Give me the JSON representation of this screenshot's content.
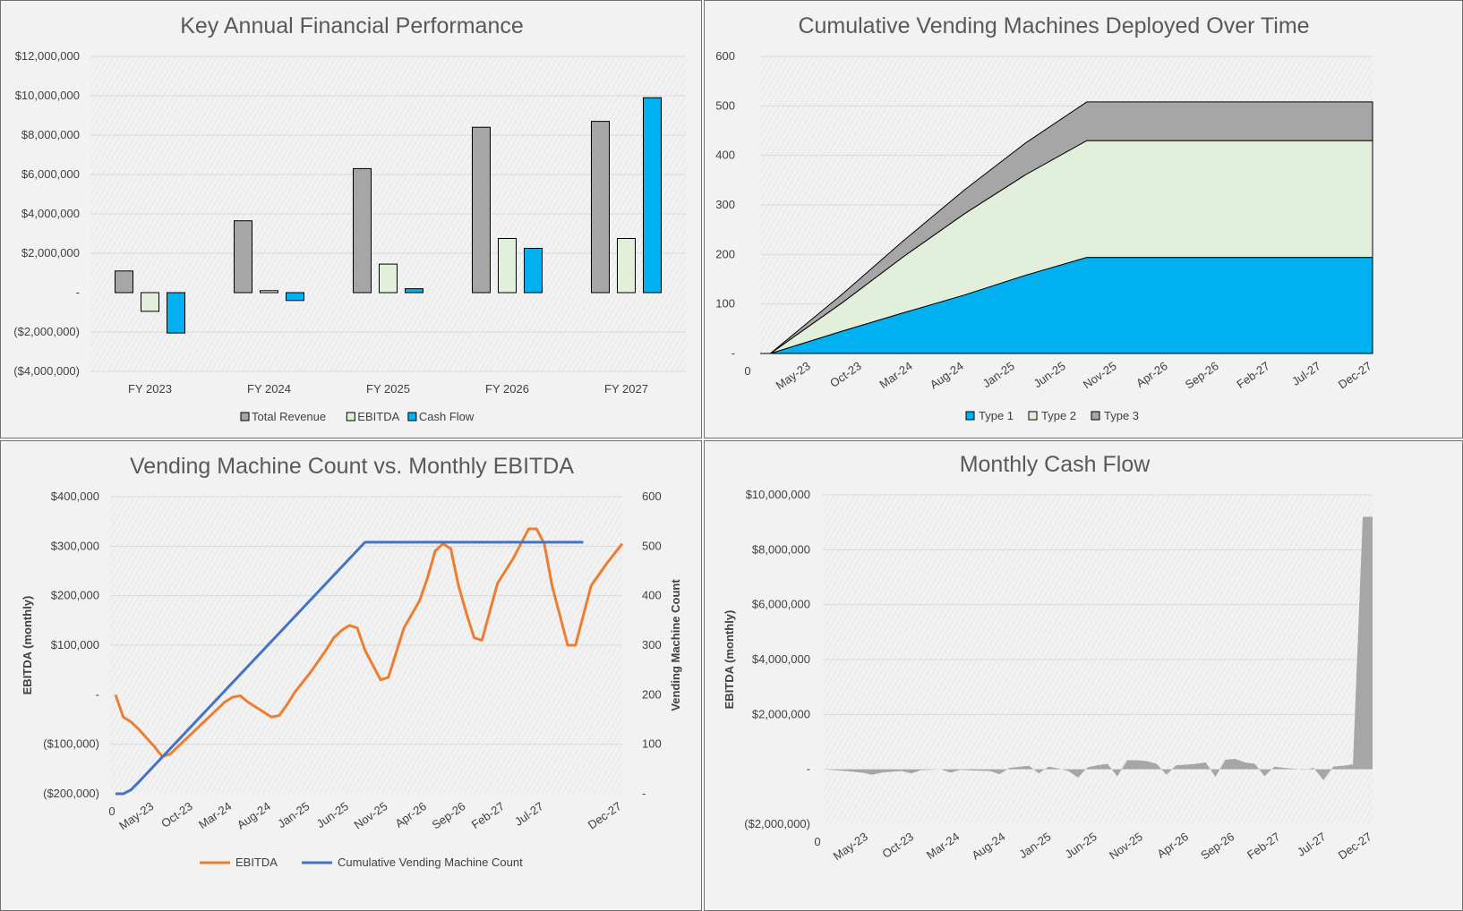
{
  "chart_data": [
    {
      "type": "bar",
      "title": "Key Annual Financial Performance",
      "categories": [
        "FY 2023",
        "FY 2024",
        "FY 2025",
        "FY 2026",
        "FY 2027"
      ],
      "series": [
        {
          "name": "Total Revenue",
          "values": [
            1100000,
            3650000,
            6300000,
            8400000,
            8700000
          ],
          "color": "#a6a6a6"
        },
        {
          "name": "EBITDA",
          "values": [
            -950000,
            100000,
            1450000,
            2750000,
            2750000
          ],
          "color": "#e2efda"
        },
        {
          "name": "Cash Flow",
          "values": [
            -2050000,
            -400000,
            200000,
            2250000,
            9900000
          ],
          "color": "#00b0f0"
        }
      ],
      "ylim": [
        -4000000,
        12000000
      ],
      "yticks": [
        12000000,
        10000000,
        8000000,
        6000000,
        4000000,
        2000000,
        0,
        -2000000,
        -4000000
      ],
      "ytick_labels": [
        "$12,000,000",
        "$10,000,000",
        "$8,000,000",
        "$6,000,000",
        "$4,000,000",
        "$2,000,000",
        "-",
        "($2,000,000)",
        "($4,000,000)"
      ],
      "legend": "bottom",
      "grid": true
    },
    {
      "type": "area",
      "stacked": true,
      "title": "Cumulative Vending Machines Deployed Over Time",
      "x_labels": [
        "0",
        "May-23",
        "Oct-23",
        "Mar-24",
        "Aug-24",
        "Jan-25",
        "Jun-25",
        "Nov-25",
        "Apr-26",
        "Sep-26",
        "Feb-27",
        "Jul-27",
        "Dec-27"
      ],
      "x_index_range": [
        0,
        60
      ],
      "series": [
        {
          "name": "Type 1",
          "color": "#00b0f0",
          "points": [
            [
              0,
              0
            ],
            [
              1,
              0
            ],
            [
              8,
              45
            ],
            [
              14,
              82
            ],
            [
              20,
              118
            ],
            [
              26,
              158
            ],
            [
              32,
              194
            ],
            [
              60,
              194
            ]
          ]
        },
        {
          "name": "Type 2",
          "color": "#e2efda",
          "points": [
            [
              0,
              0
            ],
            [
              1,
              0
            ],
            [
              8,
              57
            ],
            [
              14,
              113
            ],
            [
              20,
              164
            ],
            [
              26,
              203
            ],
            [
              32,
              236
            ],
            [
              60,
              236
            ]
          ]
        },
        {
          "name": "Type 3",
          "color": "#a6a6a6",
          "points": [
            [
              0,
              0
            ],
            [
              1,
              0
            ],
            [
              8,
              17
            ],
            [
              14,
              32
            ],
            [
              20,
              48
            ],
            [
              26,
              64
            ],
            [
              32,
              78
            ],
            [
              60,
              78
            ]
          ]
        }
      ],
      "ylim": [
        0,
        600
      ],
      "yticks": [
        600,
        500,
        400,
        300,
        200,
        100,
        0
      ],
      "ytick_labels": [
        "600",
        "500",
        "400",
        "300",
        "200",
        "100",
        "-"
      ],
      "legend": "bottom",
      "grid": true
    },
    {
      "type": "line",
      "title": "Vending Machine Count vs. Monthly EBITDA",
      "x_labels": [
        "0",
        "May-23",
        "Oct-23",
        "Mar-24",
        "Aug-24",
        "Jan-25",
        "Jun-25",
        "Nov-25",
        "Apr-26",
        "Sep-26",
        "Feb-27",
        "Jul-27",
        "Dec-27"
      ],
      "x_index_range": [
        0,
        60
      ],
      "series": [
        {
          "name": "EBITDA",
          "axis": "left",
          "color": "#ed7d31",
          "points": [
            [
              0,
              0
            ],
            [
              1,
              -45000
            ],
            [
              2,
              -55000
            ],
            [
              3,
              -70000
            ],
            [
              5,
              -105000
            ],
            [
              6,
              -125000
            ],
            [
              7,
              -120000
            ],
            [
              8,
              -105000
            ],
            [
              10,
              -75000
            ],
            [
              12,
              -45000
            ],
            [
              13,
              -30000
            ],
            [
              14,
              -15000
            ],
            [
              15,
              -5000
            ],
            [
              16,
              -2000
            ],
            [
              17,
              -15000
            ],
            [
              18,
              -25000
            ],
            [
              19,
              -35000
            ],
            [
              20,
              -45000
            ],
            [
              21,
              -42000
            ],
            [
              22,
              -20000
            ],
            [
              23,
              5000
            ],
            [
              25,
              45000
            ],
            [
              27,
              90000
            ],
            [
              28,
              115000
            ],
            [
              29,
              130000
            ],
            [
              30,
              140000
            ],
            [
              31,
              135000
            ],
            [
              32,
              90000
            ],
            [
              33,
              60000
            ],
            [
              34,
              30000
            ],
            [
              35,
              35000
            ],
            [
              37,
              135000
            ],
            [
              39,
              190000
            ],
            [
              40,
              235000
            ],
            [
              41,
              290000
            ],
            [
              42,
              305000
            ],
            [
              43,
              295000
            ],
            [
              44,
              220000
            ],
            [
              45,
              165000
            ],
            [
              46,
              115000
            ],
            [
              47,
              110000
            ],
            [
              49,
              225000
            ],
            [
              51,
              275000
            ],
            [
              53,
              335000
            ],
            [
              54,
              335000
            ],
            [
              55,
              305000
            ],
            [
              56,
              220000
            ],
            [
              57,
              160000
            ],
            [
              58,
              100000
            ],
            [
              59,
              100000
            ],
            [
              61,
              220000
            ],
            [
              63,
              265000
            ],
            [
              65,
              305000
            ]
          ]
        },
        {
          "name": "Cumulative Vending Machine Count",
          "axis": "right",
          "color": "#4472c4",
          "points": [
            [
              0,
              0
            ],
            [
              1,
              0
            ],
            [
              2,
              8
            ],
            [
              3,
              24
            ],
            [
              32,
              508
            ],
            [
              60,
              508
            ]
          ]
        }
      ],
      "x_index_max": 65,
      "ylim_left": [
        -200000,
        400000
      ],
      "yticks_left": [
        400000,
        300000,
        200000,
        100000,
        0,
        -100000,
        -200000
      ],
      "ytick_labels_left": [
        "$400,000",
        "$300,000",
        "$200,000",
        "$100,000",
        "-",
        "($100,000)",
        "($200,000)"
      ],
      "ylim_right": [
        0,
        600
      ],
      "yticks_right": [
        600,
        500,
        400,
        300,
        200,
        100,
        0
      ],
      "ytick_labels_right": [
        "600",
        "500",
        "400",
        "300",
        "200",
        "100",
        "-"
      ],
      "ylabel_left": "EBITDA (monthly)",
      "ylabel_right": "Vending Machine Count",
      "legend": "bottom",
      "grid": true
    },
    {
      "type": "area",
      "title": "Monthly Cash Flow",
      "x_labels": [
        "0",
        "May-23",
        "Oct-23",
        "Mar-24",
        "Aug-24",
        "Jan-25",
        "Jun-25",
        "Nov-25",
        "Apr-26",
        "Sep-26",
        "Feb-27",
        "Jul-27",
        "Dec-27"
      ],
      "x_index_range": [
        0,
        60
      ],
      "series": [
        {
          "name": "",
          "color": "#a6a6a6",
          "points": [
            [
              0,
              0
            ],
            [
              2,
              -50000
            ],
            [
              4,
              -120000
            ],
            [
              5,
              -200000
            ],
            [
              6,
              -120000
            ],
            [
              8,
              -60000
            ],
            [
              9,
              -150000
            ],
            [
              10,
              -30000
            ],
            [
              12,
              0
            ],
            [
              13,
              -120000
            ],
            [
              14,
              -20000
            ],
            [
              15,
              -40000
            ],
            [
              17,
              -60000
            ],
            [
              18,
              -180000
            ],
            [
              19,
              50000
            ],
            [
              20,
              90000
            ],
            [
              21,
              130000
            ],
            [
              22,
              -150000
            ],
            [
              23,
              100000
            ],
            [
              24,
              30000
            ],
            [
              25,
              -60000
            ],
            [
              26,
              -300000
            ],
            [
              27,
              80000
            ],
            [
              28,
              150000
            ],
            [
              29,
              200000
            ],
            [
              30,
              -260000
            ],
            [
              31,
              330000
            ],
            [
              32,
              330000
            ],
            [
              33,
              300000
            ],
            [
              34,
              200000
            ],
            [
              35,
              -200000
            ],
            [
              36,
              150000
            ],
            [
              37,
              170000
            ],
            [
              38,
              200000
            ],
            [
              39,
              250000
            ],
            [
              40,
              -280000
            ],
            [
              41,
              350000
            ],
            [
              42,
              380000
            ],
            [
              43,
              250000
            ],
            [
              44,
              200000
            ],
            [
              45,
              -250000
            ],
            [
              46,
              100000
            ],
            [
              47,
              50000
            ],
            [
              48,
              20000
            ],
            [
              49,
              -20000
            ],
            [
              50,
              50000
            ],
            [
              51,
              -400000
            ],
            [
              52,
              100000
            ],
            [
              53,
              130000
            ],
            [
              54,
              180000
            ],
            [
              55,
              9200000
            ],
            [
              56,
              9200000
            ]
          ]
        }
      ],
      "x_index_max": 56,
      "ylim": [
        -2000000,
        10000000
      ],
      "yticks": [
        10000000,
        8000000,
        6000000,
        4000000,
        2000000,
        0,
        -2000000
      ],
      "ytick_labels": [
        "$10,000,000",
        "$8,000,000",
        "$6,000,000",
        "$4,000,000",
        "$2,000,000",
        "-",
        "($2,000,000)"
      ],
      "ylabel": "EBITDA (monthly)",
      "grid": true
    }
  ]
}
